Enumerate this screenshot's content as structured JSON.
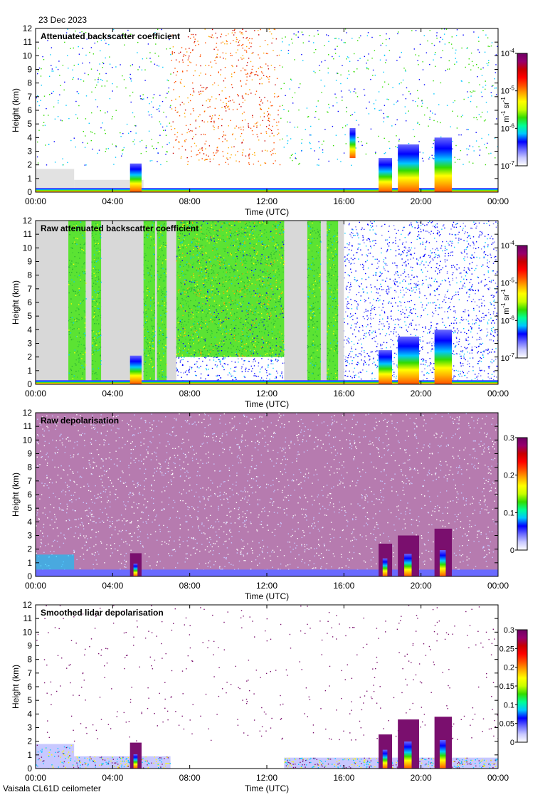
{
  "header": {
    "date": "23 Dec 2023"
  },
  "footer": {
    "instrument": "Vaisala CL61D ceilometer"
  },
  "colors": {
    "sky_gray": "#d8d8d8",
    "depol_purple": "#7a0f6e",
    "frame": "#000000",
    "colormap": [
      "#ffffff",
      "#c8c8ff",
      "#6a6aff",
      "#0000ff",
      "#00c8ff",
      "#00ff96",
      "#32dc00",
      "#c8ff00",
      "#ffff00",
      "#ffaa00",
      "#ff5000",
      "#ff0000",
      "#c80000",
      "#96006e",
      "#6e0064"
    ]
  },
  "chart_data": [
    {
      "type": "heatmap",
      "title": "Attenuated backscatter coefficient",
      "xlabel": "Time (UTC)",
      "ylabel": "Height (km)",
      "x_ticks": [
        "00:00",
        "04:00",
        "08:00",
        "12:00",
        "16:00",
        "20:00",
        "00:00"
      ],
      "xlim_hours": [
        0,
        24
      ],
      "y_ticks": [
        "0",
        "1",
        "2",
        "3",
        "4",
        "5",
        "6",
        "7",
        "8",
        "9",
        "10",
        "11",
        "12"
      ],
      "ylim_km": [
        0,
        12
      ],
      "colorbar": {
        "scale": "log",
        "range": [
          1e-07,
          0.0001
        ],
        "ticks": [
          {
            "base": "10",
            "exp": "-4",
            "frac": 1.0
          },
          {
            "base": "10",
            "exp": "-5",
            "frac": 0.6667
          },
          {
            "base": "10",
            "exp": "-6",
            "frac": 0.3333
          },
          {
            "base": "10",
            "exp": "-7",
            "frac": 0.0
          }
        ],
        "units": {
          "a": "m",
          "a_exp": "-1",
          "b": "sr",
          "b_exp": "-1"
        }
      },
      "features": {
        "surface_layer": [
          {
            "start": 0.0,
            "end": 2.0,
            "top": 1.7
          },
          {
            "start": 2.0,
            "end": 5.6,
            "top": 0.9
          },
          {
            "start": 5.6,
            "end": 24.0,
            "top": 0.25
          }
        ],
        "clouds": [
          {
            "start": 4.9,
            "end": 5.5,
            "base": 0.0,
            "top": 2.1
          },
          {
            "start": 17.8,
            "end": 18.5,
            "base": 0.0,
            "top": 2.5
          },
          {
            "start": 18.8,
            "end": 19.9,
            "base": 0.0,
            "top": 3.5
          },
          {
            "start": 20.7,
            "end": 21.6,
            "base": 0.0,
            "top": 4.0
          },
          {
            "start": 16.3,
            "end": 16.6,
            "base": 2.5,
            "top": 4.7
          }
        ],
        "aloft_noise": [
          {
            "start": 8.0,
            "end": 12.6,
            "bottom": 2.0,
            "top": 12.0,
            "intensity": 0.75
          },
          {
            "start": 6.7,
            "end": 8.0,
            "bottom": 2.5,
            "top": 11.0,
            "intensity": 0.5
          },
          {
            "start": 0.0,
            "end": 24.0,
            "bottom": 2.0,
            "top": 12.0,
            "intensity": 0.5
          }
        ]
      }
    },
    {
      "type": "heatmap",
      "title": "Raw attenuated backscatter coefficient",
      "xlabel": "Time (UTC)",
      "ylabel": "Height (km)",
      "x_ticks": [
        "00:00",
        "04:00",
        "08:00",
        "12:00",
        "16:00",
        "20:00",
        "00:00"
      ],
      "xlim_hours": [
        0,
        24
      ],
      "y_ticks": [
        "0",
        "1",
        "2",
        "3",
        "4",
        "5",
        "6",
        "7",
        "8",
        "9",
        "10",
        "11",
        "12"
      ],
      "ylim_km": [
        0,
        12
      ],
      "colorbar": {
        "scale": "log",
        "range": [
          1e-07,
          0.0001
        ],
        "ticks": [
          {
            "base": "10",
            "exp": "-4",
            "frac": 1.0
          },
          {
            "base": "10",
            "exp": "-5",
            "frac": 0.6667
          },
          {
            "base": "10",
            "exp": "-6",
            "frac": 0.3333
          },
          {
            "base": "10",
            "exp": "-7",
            "frac": 0.0
          }
        ],
        "units": {
          "a": "m",
          "a_exp": "-1",
          "b": "sr",
          "b_exp": "-1"
        }
      },
      "features": {
        "gray_periods": [
          {
            "start": 0.0,
            "end": 1.7
          },
          {
            "start": 2.6,
            "end": 2.9
          },
          {
            "start": 3.4,
            "end": 5.6
          },
          {
            "start": 6.2,
            "end": 6.3
          },
          {
            "start": 6.8,
            "end": 7.3
          },
          {
            "start": 12.9,
            "end": 14.1
          },
          {
            "start": 14.8,
            "end": 15.1
          },
          {
            "start": 15.7,
            "end": 16.0
          }
        ],
        "green_periods": [
          {
            "start": 1.7,
            "end": 2.6
          },
          {
            "start": 2.9,
            "end": 3.4
          },
          {
            "start": 5.6,
            "end": 6.2
          },
          {
            "start": 6.3,
            "end": 6.8
          },
          {
            "start": 14.1,
            "end": 14.8
          },
          {
            "start": 15.1,
            "end": 15.7
          }
        ],
        "noisy_period": {
          "start": 7.3,
          "end": 12.9,
          "bottom": 2.0
        },
        "clouds": [
          {
            "start": 4.9,
            "end": 5.5,
            "base": 0.0,
            "top": 2.1
          },
          {
            "start": 17.8,
            "end": 18.5,
            "base": 0.0,
            "top": 2.5
          },
          {
            "start": 18.8,
            "end": 19.9,
            "base": 0.0,
            "top": 3.5
          },
          {
            "start": 20.7,
            "end": 21.6,
            "base": 0.0,
            "top": 4.0
          }
        ]
      }
    },
    {
      "type": "heatmap",
      "title": "Raw depolarisation",
      "xlabel": "Time (UTC)",
      "ylabel": "Height (km)",
      "x_ticks": [
        "00:00",
        "04:00",
        "08:00",
        "12:00",
        "16:00",
        "20:00",
        "00:00"
      ],
      "xlim_hours": [
        0,
        24
      ],
      "y_ticks": [
        "0",
        "1",
        "2",
        "3",
        "4",
        "5",
        "6",
        "7",
        "8",
        "9",
        "10",
        "11",
        "12"
      ],
      "ylim_km": [
        0,
        12
      ],
      "colorbar": {
        "scale": "linear",
        "range": [
          0,
          0.3
        ],
        "ticks": [
          {
            "label": "0.3",
            "frac": 1.0
          },
          {
            "label": "0.2",
            "frac": 0.6667
          },
          {
            "label": "0.1",
            "frac": 0.3333
          },
          {
            "label": "0",
            "frac": 0.0
          }
        ]
      },
      "features": {
        "purple_density": 0.55,
        "surface_layer_top_km": 0.5,
        "clouds": [
          {
            "start": 4.9,
            "end": 5.5,
            "base": 0.0,
            "top": 1.7
          },
          {
            "start": 17.8,
            "end": 18.5,
            "base": 0.0,
            "top": 2.4
          },
          {
            "start": 18.8,
            "end": 19.9,
            "base": 0.0,
            "top": 3.0
          },
          {
            "start": 20.7,
            "end": 21.6,
            "base": 0.0,
            "top": 3.5
          }
        ]
      }
    },
    {
      "type": "heatmap",
      "title": "Smoothed lidar depolarisation",
      "xlabel": "Time (UTC)",
      "ylabel": "Height (km)",
      "x_ticks": [
        "00:00",
        "04:00",
        "08:00",
        "12:00",
        "16:00",
        "20:00",
        "00:00"
      ],
      "xlim_hours": [
        0,
        24
      ],
      "y_ticks": [
        "0",
        "1",
        "2",
        "3",
        "4",
        "5",
        "6",
        "7",
        "8",
        "9",
        "10",
        "11",
        "12"
      ],
      "ylim_km": [
        0,
        12
      ],
      "colorbar": {
        "scale": "linear",
        "range": [
          0,
          0.3
        ],
        "ticks": [
          {
            "label": "0.3",
            "frac": 1.0
          },
          {
            "label": "0.25",
            "frac": 0.8333
          },
          {
            "label": "0.2",
            "frac": 0.6667
          },
          {
            "label": "0.15",
            "frac": 0.5
          },
          {
            "label": "0.1",
            "frac": 0.3333
          },
          {
            "label": "0.05",
            "frac": 0.1667
          },
          {
            "label": "0",
            "frac": 0.0
          }
        ]
      },
      "features": {
        "surface_layer": [
          {
            "start": 0.0,
            "end": 2.0,
            "top": 1.8
          },
          {
            "start": 2.0,
            "end": 7.0,
            "top": 0.9
          },
          {
            "start": 12.9,
            "end": 24.0,
            "top": 0.8
          }
        ],
        "clouds": [
          {
            "start": 4.9,
            "end": 5.5,
            "base": 0.0,
            "top": 1.9
          },
          {
            "start": 17.8,
            "end": 18.5,
            "base": 0.0,
            "top": 2.5
          },
          {
            "start": 18.8,
            "end": 19.9,
            "base": 0.0,
            "top": 3.6
          },
          {
            "start": 20.7,
            "end": 21.6,
            "base": 0.0,
            "top": 3.8
          }
        ]
      }
    }
  ]
}
